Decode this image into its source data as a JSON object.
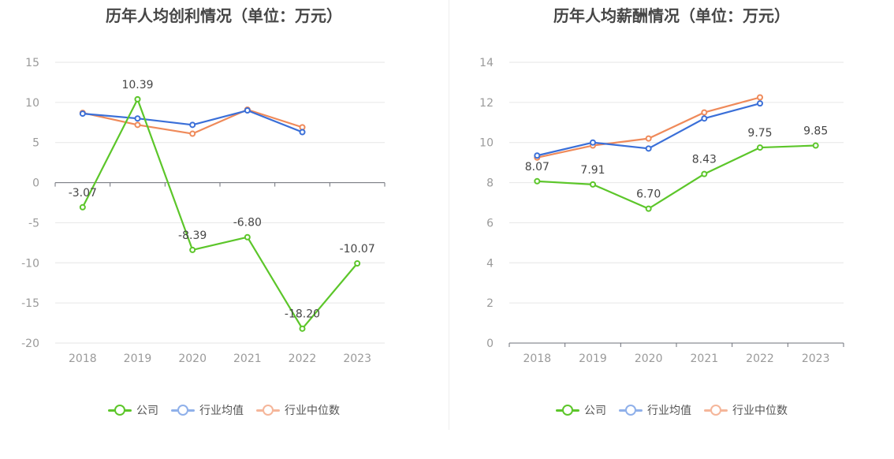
{
  "colors": {
    "company": "#5cc62a",
    "industry_avg": "#3a6fd8",
    "industry_median": "#ef8a5a",
    "legend_avg": "#8fb0ea",
    "legend_median": "#f5b69a"
  },
  "chart_data": [
    {
      "type": "line",
      "title": "历年人均创利情况（单位：万元）",
      "categories": [
        "2018",
        "2019",
        "2020",
        "2021",
        "2022",
        "2023"
      ],
      "ylim": [
        -20,
        15
      ],
      "yticks": [
        "15",
        "10",
        "5",
        "0",
        "-5",
        "-10",
        "-15",
        "-20"
      ],
      "grid": true,
      "legend": "bottom",
      "series": [
        {
          "name": "公司",
          "values": [
            -3.07,
            10.39,
            -8.39,
            -6.8,
            -18.2,
            -10.07
          ],
          "labels": [
            "-3.07",
            "10.39",
            "-8.39",
            "-6.80",
            "-18.20",
            "-10.07"
          ]
        },
        {
          "name": "行业均值",
          "values": [
            8.6,
            8.0,
            7.2,
            9.0,
            6.3,
            null
          ]
        },
        {
          "name": "行业中位数",
          "values": [
            8.7,
            7.2,
            6.1,
            9.1,
            6.9,
            null
          ]
        }
      ]
    },
    {
      "type": "line",
      "title": "历年人均薪酬情况（单位：万元）",
      "categories": [
        "2018",
        "2019",
        "2020",
        "2021",
        "2022",
        "2023"
      ],
      "ylim": [
        0,
        14
      ],
      "yticks": [
        "14",
        "12",
        "10",
        "8",
        "6",
        "4",
        "2",
        "0"
      ],
      "grid": true,
      "legend": "bottom",
      "series": [
        {
          "name": "公司",
          "values": [
            8.07,
            7.91,
            6.7,
            8.43,
            9.75,
            9.85
          ],
          "labels": [
            "8.07",
            "7.91",
            "6.70",
            "8.43",
            "9.75",
            "9.85"
          ]
        },
        {
          "name": "行业均值",
          "values": [
            9.35,
            10.0,
            9.7,
            11.2,
            11.95,
            null
          ]
        },
        {
          "name": "行业中位数",
          "values": [
            9.25,
            9.85,
            10.2,
            11.5,
            12.25,
            null
          ]
        }
      ]
    }
  ]
}
